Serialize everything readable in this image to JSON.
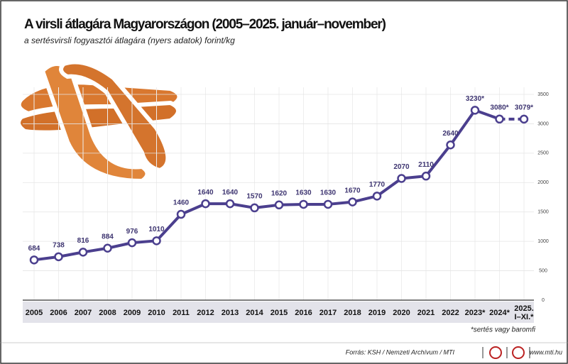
{
  "chart_data": {
    "type": "line",
    "title": "A virsli átlagára Magyarországon (2005–2025. január–november)",
    "subtitle": "a sertésvirsli fogyasztói átlagára (nyers adatok) forint/kg",
    "categories": [
      "2005",
      "2006",
      "2007",
      "2008",
      "2009",
      "2010",
      "2011",
      "2012",
      "2013",
      "2014",
      "2015",
      "2016",
      "2017",
      "2018",
      "2019",
      "2020",
      "2021",
      "2022",
      "2023*",
      "2024*",
      "2025. I–XI.*"
    ],
    "series": [
      {
        "name": "sertésvirsli",
        "color": "#4b3f8e",
        "values": [
          684,
          738,
          816,
          884,
          976,
          1010,
          1460,
          1640,
          1640,
          1570,
          1620,
          1630,
          1630,
          1670,
          1770,
          2070,
          2110,
          2640,
          3230,
          3080,
          3079
        ],
        "value_labels": [
          "684",
          "738",
          "816",
          "884",
          "976",
          "1010",
          "1460",
          "1640",
          "1640",
          "1570",
          "1620",
          "1630",
          "1630",
          "1670",
          "1770",
          "2070",
          "2110",
          "2640",
          "3230*",
          "3080*",
          "3079*"
        ],
        "dashed_last_segment": true
      }
    ],
    "ylim": [
      0,
      3500
    ],
    "yticks": [
      0,
      500,
      1000,
      1500,
      2000,
      2500,
      3000,
      3500
    ],
    "grid": true,
    "footnote": "*sertés vagy baromfi",
    "source": "Forrás: KSH / Nemzeti Archívum / MTI",
    "website": "www.mti.hu"
  }
}
